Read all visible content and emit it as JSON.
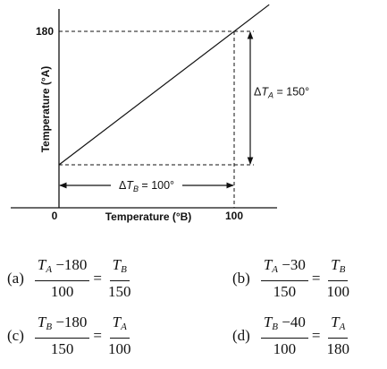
{
  "chart_data": {
    "type": "line",
    "xlabel": "Temperature (°B)",
    "ylabel": "Temperature (°A)",
    "x_ticks": [
      "0",
      "100"
    ],
    "y_ticks": [
      "180"
    ],
    "series": [
      {
        "x": [
          0,
          100,
          120
        ],
        "y": [
          30,
          180,
          210
        ]
      }
    ],
    "annotations": {
      "delta_a": {
        "symbol": "Δ",
        "var": "T",
        "sub": "A",
        "value": " = 150°"
      },
      "delta_b": {
        "symbol": "Δ",
        "var": "T",
        "sub": "B",
        "value": " = 100°"
      }
    },
    "grid": false
  },
  "options": [
    {
      "label": "(a)",
      "lhs_num": {
        "var": "T",
        "sub": "A",
        "rest": " −180"
      },
      "lhs_den": "100",
      "rhs_num": {
        "var": "T",
        "sub": "B"
      },
      "rhs_den": "150"
    },
    {
      "label": "(b)",
      "lhs_num": {
        "var": "T",
        "sub": "A",
        "rest": " −30"
      },
      "lhs_den": "150",
      "rhs_num": {
        "var": "T",
        "sub": "B"
      },
      "rhs_den": "100"
    },
    {
      "label": "(c)",
      "lhs_num": {
        "var": "T",
        "sub": "B",
        "rest": " −180"
      },
      "lhs_den": "150",
      "rhs_num": {
        "var": "T",
        "sub": "A"
      },
      "rhs_den": "100"
    },
    {
      "label": "(d)",
      "lhs_num": {
        "var": "T",
        "sub": "B",
        "rest": " −40"
      },
      "lhs_den": "100",
      "rhs_num": {
        "var": "T",
        "sub": "A"
      },
      "rhs_den": "180"
    }
  ],
  "eq_sign": "="
}
